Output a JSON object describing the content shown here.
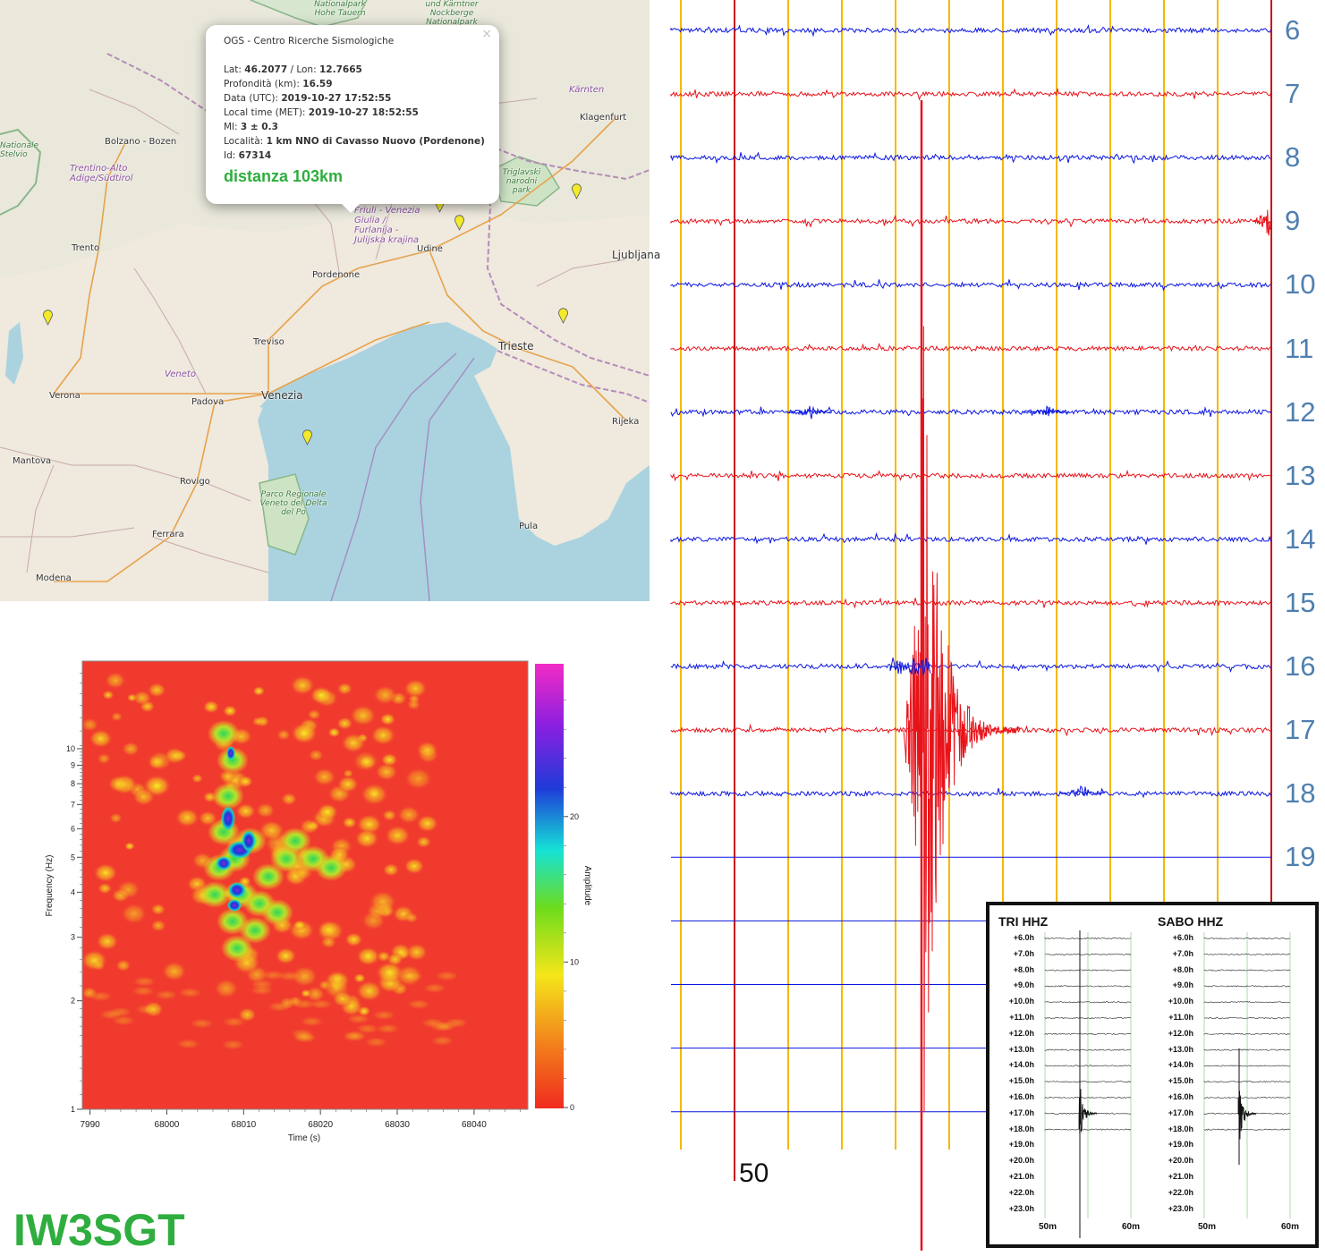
{
  "map": {
    "cities": [
      "Bolzano - Bozen",
      "Trento",
      "Verona",
      "Mantova",
      "Padova",
      "Venezia",
      "Treviso",
      "Rovigo",
      "Ferrara",
      "Modena",
      "Pordenone",
      "Udine",
      "Trieste",
      "Pula",
      "Rijeka",
      "Klagenfurt",
      "Ljubljana"
    ],
    "regions": [
      "Trentino-Alto Adige/Südtirol",
      "Veneto",
      "Friuli - Venezia Giulia / Furlanija - Julijska krajina",
      "Kärnten"
    ],
    "parks": [
      "Nationalpark Hohe Tauern",
      "Nationale Stelvio",
      "Parco Regionale Veneto del Delta del Po",
      "Triglavski narodni park",
      "und Kärntner Nockberge Nationalpark"
    ]
  },
  "popup": {
    "source": "OGS - Centro Ricerche Sismologiche",
    "lat_label": "Lat:",
    "lat": "46.2077",
    "lon_label": "/ Lon:",
    "lon": "12.7665",
    "depth_label": "Profondità (km):",
    "depth": "16.59",
    "utc_label": "Data (UTC):",
    "utc": "2019-10-27 17:52:55",
    "local_label": "Local time (MET):",
    "local": "2019-10-27 18:52:55",
    "ml_label": "Ml:",
    "ml": "3 ± 0.3",
    "loc_label": "Località:",
    "loc": "1 km NNO di Cavasso Nuovo (Pordenone)",
    "id_label": "Id:",
    "id": "67314",
    "distance": "distanza 103km",
    "close": "×"
  },
  "spectrogram": {
    "xlabel": "Time (s)",
    "ylabel": "Frequency (Hz)",
    "colorbar_label": "Amplitude",
    "x_ticks": [
      "7990",
      "68000",
      "68010",
      "68020",
      "68030",
      "68040"
    ],
    "y_ticks": [
      "1",
      "2",
      "3",
      "4",
      "5",
      "6",
      "7",
      "8",
      "9",
      "10"
    ],
    "cbar_ticks": [
      "0",
      "10",
      "20"
    ],
    "colors": {
      "low": "#f03a2e",
      "mid": "#f2e21a",
      "high": "#1d2bd6",
      "peak": "#e623c8"
    }
  },
  "seismogram": {
    "row_labels": [
      "6",
      "7",
      "8",
      "9",
      "10",
      "11",
      "12",
      "13",
      "14",
      "15",
      "16",
      "17",
      "18",
      "19"
    ],
    "minute_label": "50",
    "colors": {
      "blue_trace": "#0b16e0",
      "red_trace": "#e8131a",
      "minute_line": "#f5b800",
      "hour_line": "#c81414",
      "label": "#4f7fb0"
    }
  },
  "inset": {
    "tri_title": "TRI HHZ",
    "sabo_title": "SABO HHZ",
    "hour_labels": [
      "+6.0h",
      "+7.0h",
      "+8.0h",
      "+9.0h",
      "+10.0h",
      "+11.0h",
      "+12.0h",
      "+13.0h",
      "+14.0h",
      "+15.0h",
      "+16.0h",
      "+17.0h",
      "+18.0h",
      "+19.0h",
      "+20.0h",
      "+21.0h",
      "+22.0h",
      "+23.0h"
    ],
    "axis_labels": [
      "50m",
      "60m"
    ]
  },
  "callsign": "IW3SGT"
}
